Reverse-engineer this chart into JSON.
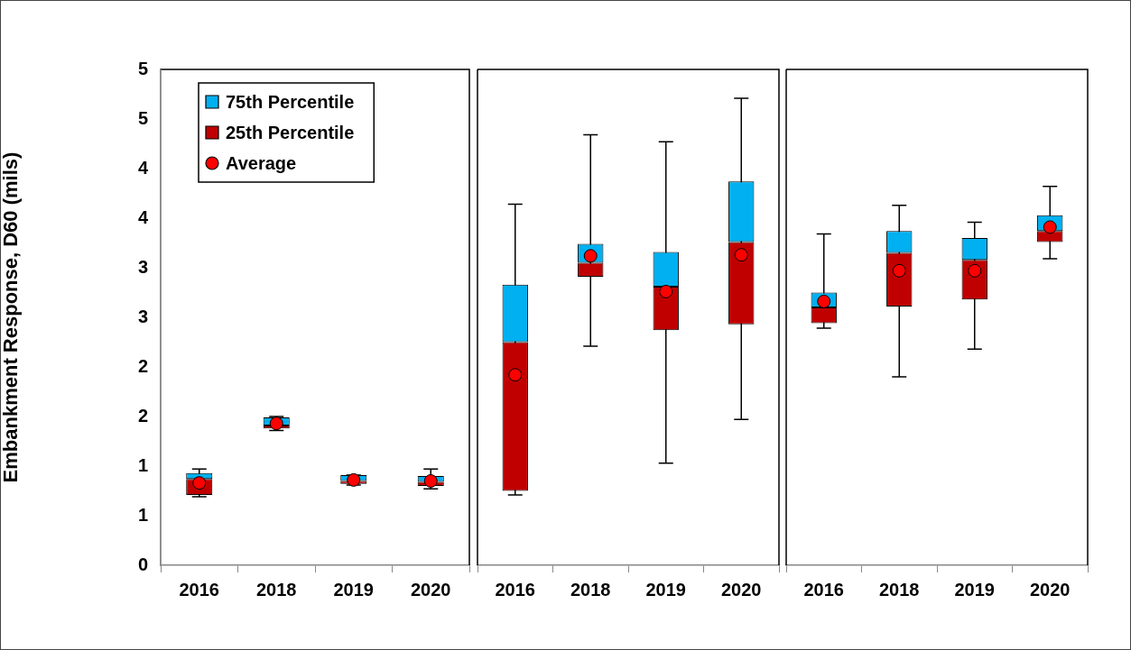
{
  "chart_data": [
    {
      "type": "bar",
      "stacked": true,
      "ylabel": "Embankment Response, D60 (mils)",
      "legend": "top left",
      "marker": "circle",
      "categories": [
        "2016",
        "2018",
        "2019",
        "2020"
      ],
      "ylim": [
        0,
        5
      ],
      "yticks": [
        0,
        {
          "value": 0.5,
          "label": "1"
        },
        1,
        {
          "value": 1.5,
          "label": "2"
        },
        2,
        {
          "value": 2.5,
          "label": "3"
        },
        3,
        {
          "value": 3.5,
          "label": "4"
        },
        4,
        {
          "value": 4.5,
          "label": "5"
        },
        5
      ],
      "series": [
        {
          "name": "25th Percentile",
          "color": "#c00000",
          "base": [
            0.71,
            1.38,
            0.82,
            0.8
          ],
          "values": [
            0.16,
            0.03,
            0.03,
            0.04
          ]
        },
        {
          "name": "75th Percentile",
          "color": "#00b0f0",
          "values": [
            0.06,
            0.08,
            0.06,
            0.06
          ],
          "errors": [
            [
              0.69,
              0.97
            ],
            [
              1.36,
              1.5
            ],
            [
              0.81,
              0.91
            ],
            [
              0.77,
              0.97
            ]
          ]
        },
        {
          "name": "Average",
          "type": "scatter",
          "color": "#ff0000",
          "values": [
            0.83,
            1.43,
            0.86,
            0.85
          ]
        }
      ]
    },
    {
      "type": "bar",
      "stacked": true,
      "tick_labels": "x",
      "marker": "circle",
      "categories": [
        "2016",
        "2018",
        "2019",
        "2020"
      ],
      "ylim": [
        0,
        5
      ],
      "series": [
        {
          "color": "#c00000",
          "base": [
            0.75,
            2.91,
            2.37,
            2.43
          ],
          "values": [
            1.5,
            0.14,
            0.44,
            0.83
          ]
        },
        {
          "color": "#00b0f0",
          "values": [
            0.58,
            0.19,
            0.35,
            0.61
          ],
          "errors": [
            [
              0.71,
              3.64
            ],
            [
              2.21,
              4.34
            ],
            [
              1.03,
              4.27
            ],
            [
              1.47,
              4.71
            ]
          ]
        },
        {
          "type": "scatter",
          "color": "#ff0000",
          "values": [
            1.92,
            3.12,
            2.76,
            3.13
          ]
        }
      ]
    },
    {
      "type": "bar",
      "stacked": true,
      "tick_labels": "x",
      "marker": "circle",
      "categories": [
        "2016",
        "2018",
        "2019",
        "2020"
      ],
      "ylim": [
        0,
        5
      ],
      "series": [
        {
          "color": "#c00000",
          "base": [
            2.44,
            2.61,
            2.68,
            3.26
          ],
          "values": [
            0.16,
            0.54,
            0.4,
            0.11
          ]
        },
        {
          "color": "#00b0f0",
          "values": [
            0.15,
            0.22,
            0.22,
            0.16
          ],
          "errors": [
            [
              2.39,
              3.34
            ],
            [
              1.9,
              3.63
            ],
            [
              2.18,
              3.46
            ],
            [
              3.09,
              3.82
            ]
          ]
        },
        {
          "type": "scatter",
          "color": "#ff0000",
          "values": [
            2.66,
            2.97,
            2.97,
            3.41
          ]
        }
      ]
    }
  ]
}
